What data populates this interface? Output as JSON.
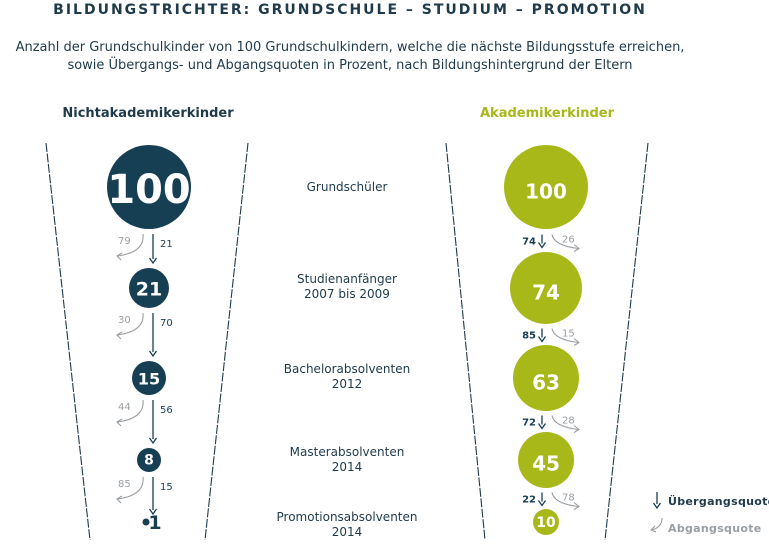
{
  "title": "BILDUNGSTRICHTER: GRUNDSCHULE – STUDIUM – PROMOTION",
  "subtitle_line1": "Anzahl der Grundschulkinder von 100 Grundschulkindern, welche die nächste Bildungsstufe erreichen,",
  "subtitle_line2": "sowie Übergangs- und Abgangsquoten in Prozent, nach Bildungshintergrund der Eltern",
  "colors": {
    "dark": "#173f54",
    "green": "#a9b819",
    "gray": "#9a9fa3"
  },
  "stages": [
    {
      "line1": "Grundschüler",
      "line2": ""
    },
    {
      "line1": "Studienanfänger",
      "line2": "2007 bis 2009"
    },
    {
      "line1": "Bachelorabsolventen",
      "line2": "2012"
    },
    {
      "line1": "Masterabsolventen",
      "line2": "2014"
    },
    {
      "line1": "Promotionsabsolventen",
      "line2": "2014"
    }
  ],
  "left": {
    "heading": "Nichtakademikerkinder",
    "values": [
      "100",
      "21",
      "15",
      "8",
      "1"
    ],
    "uebergang": [
      "21",
      "70",
      "56",
      "15"
    ],
    "abgang": [
      "79",
      "30",
      "44",
      "85"
    ]
  },
  "right": {
    "heading": "Akademikerkinder",
    "values": [
      "100",
      "74",
      "63",
      "45",
      "10"
    ],
    "uebergang": [
      "74",
      "85",
      "72",
      "22"
    ],
    "abgang": [
      "26",
      "15",
      "28",
      "78"
    ]
  },
  "legend": {
    "uebergang": "Übergangsquote",
    "abgang": "Abgangsquote"
  }
}
